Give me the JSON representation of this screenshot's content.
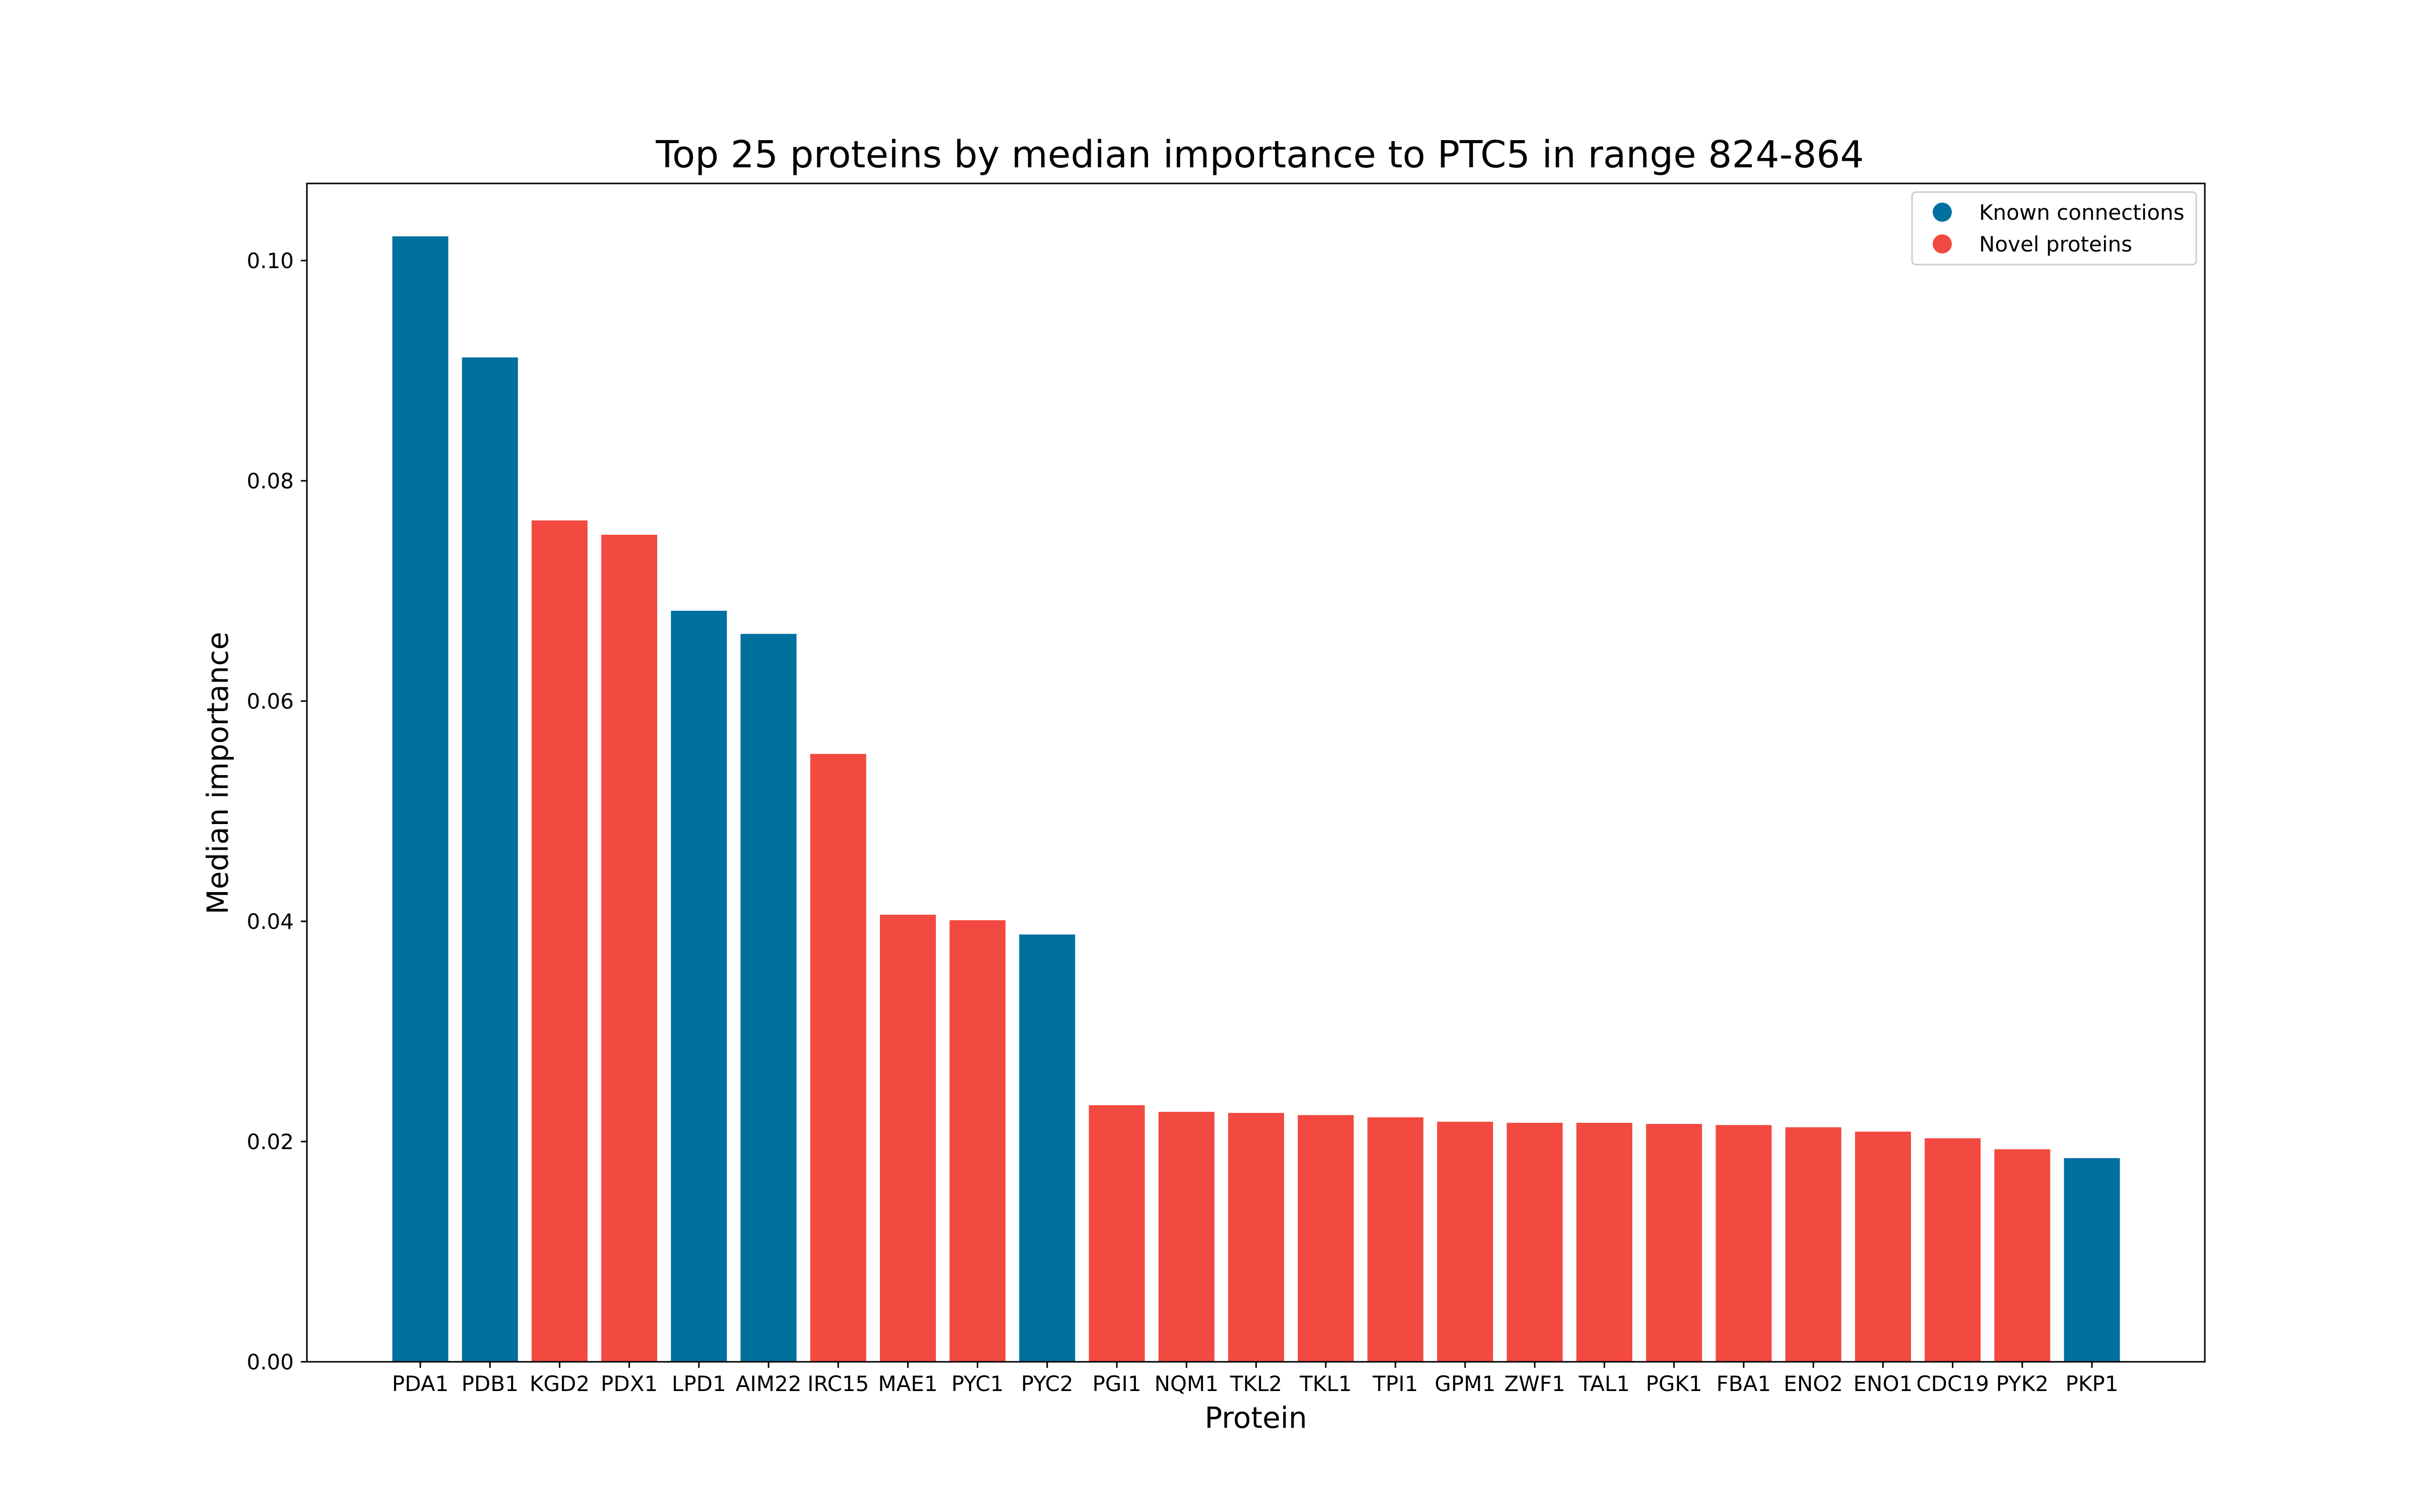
{
  "chart_data": {
    "type": "bar",
    "title": "Top 25 proteins by median importance to PTC5 in range 824-864",
    "xlabel": "Protein",
    "ylabel": "Median importance",
    "ylim": [
      0,
      0.107
    ],
    "yticks": [
      0.0,
      0.02,
      0.04,
      0.06,
      0.08,
      0.1
    ],
    "ytick_labels": [
      "0.00",
      "0.02",
      "0.04",
      "0.06",
      "0.08",
      "0.10"
    ],
    "grid": false,
    "legend_position": "top-right",
    "colors": {
      "known": "#00709e",
      "novel": "#f24a40"
    },
    "legend": [
      {
        "label": "Known connections",
        "group": "known"
      },
      {
        "label": "Novel proteins",
        "group": "novel"
      }
    ],
    "categories": [
      "PDA1",
      "PDB1",
      "KGD2",
      "PDX1",
      "LPD1",
      "AIM22",
      "IRC15",
      "MAE1",
      "PYC1",
      "PYC2",
      "PGI1",
      "NQM1",
      "TKL2",
      "TKL1",
      "TPI1",
      "GPM1",
      "ZWF1",
      "TAL1",
      "PGK1",
      "FBA1",
      "ENO2",
      "ENO1",
      "CDC19",
      "PYK2",
      "PKP1"
    ],
    "values": [
      0.1022,
      0.0912,
      0.0764,
      0.0751,
      0.0682,
      0.0661,
      0.0552,
      0.0406,
      0.0401,
      0.0388,
      0.0233,
      0.0227,
      0.0226,
      0.0224,
      0.0222,
      0.0218,
      0.0217,
      0.0217,
      0.0216,
      0.0215,
      0.0213,
      0.0209,
      0.0203,
      0.0193,
      0.0185
    ],
    "groups": [
      "known",
      "known",
      "novel",
      "novel",
      "known",
      "known",
      "novel",
      "novel",
      "novel",
      "known",
      "novel",
      "novel",
      "novel",
      "novel",
      "novel",
      "novel",
      "novel",
      "novel",
      "novel",
      "novel",
      "novel",
      "novel",
      "novel",
      "novel",
      "known"
    ]
  }
}
